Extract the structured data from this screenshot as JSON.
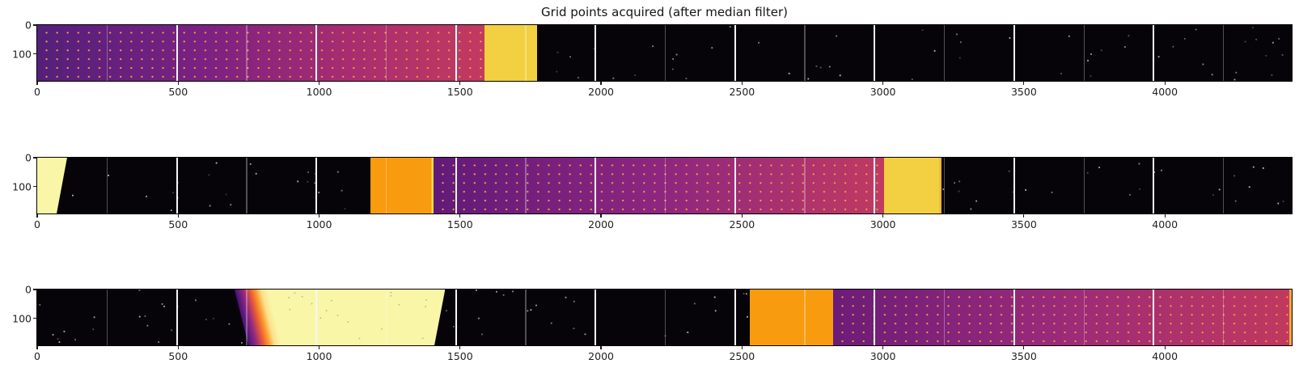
{
  "title": "Grid points acquired (after median filter)",
  "chart_data": {
    "type": "heatmap",
    "title": "Grid points acquired (after median filter)",
    "colormap": "magma",
    "x_max": 4450,
    "x_ticks": [
      0,
      500,
      1000,
      1500,
      2000,
      2500,
      3000,
      3500,
      4000
    ],
    "y_ticks": [
      0,
      100
    ],
    "legend": "none",
    "grid": {
      "white_seams": [
        495,
        990,
        1485,
        1980,
        2475,
        2970,
        3465,
        3960
      ],
      "gray_seams": [
        248,
        743,
        1238,
        1733,
        2228,
        2723,
        3218,
        3713,
        4208
      ]
    },
    "strips": [
      {
        "name": "band-1",
        "segments": [
          {
            "kind": "gradient",
            "x0": 0,
            "x1": 1586,
            "dots": true,
            "stops": [
              [
                "#53207a",
                0
              ],
              [
                "#7c2183",
                38
              ],
              [
                "#a62c71",
                68
              ],
              [
                "#c23a60",
                100
              ]
            ]
          },
          {
            "kind": "solid",
            "x0": 1586,
            "x1": 1773,
            "color": "#f3d041"
          },
          {
            "kind": "dark",
            "x0": 1773,
            "x1": 4450
          }
        ]
      },
      {
        "name": "band-2",
        "segments": [
          {
            "kind": "trapezoid",
            "x0": 0,
            "x1": 106,
            "polygon": [
              [
                0,
                0
              ],
              [
                100,
                0
              ],
              [
                65.1,
                100
              ],
              [
                0,
                100
              ]
            ],
            "color": "#f9f6a7"
          },
          {
            "kind": "dark",
            "x0": 106,
            "x1": 1182
          },
          {
            "kind": "solid",
            "x0": 1182,
            "x1": 1405,
            "color": "#f99b0e",
            "right_edge": "#ffd94f"
          },
          {
            "kind": "gradient",
            "x0": 1405,
            "x1": 3003,
            "dots": true,
            "stops": [
              [
                "#611a79",
                0
              ],
              [
                "#8d2680",
                50
              ],
              [
                "#c03a62",
                100
              ]
            ]
          },
          {
            "kind": "solid",
            "x0": 3003,
            "x1": 3208,
            "color": "#f3d041",
            "right_edge": "#e8b43a"
          },
          {
            "kind": "dark",
            "x0": 3208,
            "x1": 4450
          }
        ]
      },
      {
        "name": "band-3",
        "segments": [
          {
            "kind": "dark",
            "x0": 0,
            "x1": 700
          },
          {
            "kind": "ramp_block",
            "x0": 700,
            "x1": 1447,
            "polygon": [
              [
                0,
                0
              ],
              [
                100,
                0
              ],
              [
                94.9,
                100
              ],
              [
                6.6,
                100
              ]
            ],
            "stops": [
              [
                "#06030a",
                0
              ],
              [
                "#41107a",
                6
              ],
              [
                "#942a7e",
                10
              ],
              [
                "#e85937",
                13
              ],
              [
                "#fb9b2e",
                15.5
              ],
              [
                "#fbe08a",
                18
              ],
              [
                "#f9f6a7",
                21
              ],
              [
                "#f9f6a7",
                100
              ]
            ],
            "dark_specks": true
          },
          {
            "kind": "dark",
            "x0": 1447,
            "x1": 2527
          },
          {
            "kind": "solid",
            "x0": 2527,
            "x1": 2823,
            "color": "#f99b0e"
          },
          {
            "kind": "gradient",
            "x0": 2823,
            "x1": 4450,
            "dots": true,
            "stops": [
              [
                "#6b1c78",
                0
              ],
              [
                "#97297b",
                45
              ],
              [
                "#c0395f",
                100
              ]
            ],
            "right_edge": "#f5a93b"
          }
        ]
      }
    ]
  },
  "colors": {
    "background": "#ffffff",
    "strip_background": "#070409",
    "white_seam": "#f7f5f8",
    "golden_block": "#f3d041",
    "orange_block": "#f99b0e",
    "pale_yellow_block": "#f9f6a7",
    "grid_dot": "#ef8e3c",
    "tick_text": "#1f1f1f"
  }
}
